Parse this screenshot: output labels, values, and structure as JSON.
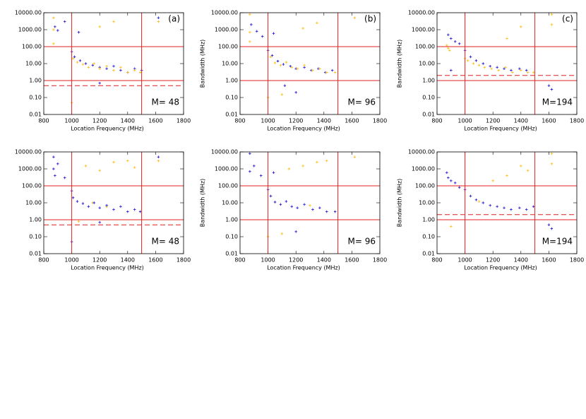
{
  "chart_data": [
    {
      "type": "scatter",
      "panel_label": "(a)",
      "annotation": "M= 48",
      "xlabel": "Location Frequency (MHz)",
      "ylabel": "Bandwidth (MHz)",
      "xlim": [
        800,
        1800
      ],
      "ylim": [
        0.01,
        10000
      ],
      "log_y": true,
      "xticks": [
        800,
        1000,
        1200,
        1400,
        1600,
        1800
      ],
      "yticks": [
        {
          "value": 10000,
          "label": "10000.00"
        },
        {
          "value": 1000,
          "label": "1000.00"
        },
        {
          "value": 100,
          "label": "100.00"
        },
        {
          "value": 10,
          "label": "10.00"
        },
        {
          "value": 1,
          "label": "1.00"
        },
        {
          "value": 0.1,
          "label": "0.10"
        },
        {
          "value": 0.01,
          "label": "0.01"
        }
      ],
      "vlines": [
        1000,
        1500
      ],
      "hlines": [
        1,
        100
      ],
      "dashed_hline": 0.5,
      "line_color": "#e02020",
      "series": [
        {
          "color": "#2a1fd6",
          "x": [
            880,
            900,
            950,
            1000,
            1020,
            1060,
            1100,
            1150,
            1200,
            1250,
            1300,
            1350,
            1400,
            1450,
            1500,
            1620,
            1050,
            1200
          ],
          "values": [
            1500,
            900,
            3000,
            50,
            25,
            15,
            10,
            8,
            6,
            5,
            7,
            4,
            3,
            5,
            4,
            5000,
            700,
            0.7
          ]
        },
        {
          "color": "#ffbf1a",
          "x": [
            870,
            870,
            870,
            1000,
            1010,
            1040,
            1080,
            1120,
            1160,
            1200,
            1250,
            1300,
            1350,
            1400,
            1450,
            1490,
            1200,
            1300,
            1620,
            1000
          ],
          "values": [
            5000,
            1000,
            150,
            0.05,
            20,
            12,
            9,
            6,
            10,
            5,
            7,
            4,
            6,
            3,
            4,
            3,
            1500,
            3000,
            3000,
            1
          ]
        }
      ]
    },
    {
      "type": "scatter",
      "panel_label": "(b)",
      "annotation": "M= 96",
      "xlabel": "Location Frequency (MHz)",
      "ylabel": "Bandwidth (MHz)",
      "xlim": [
        800,
        1800
      ],
      "ylim": [
        0.01,
        10000
      ],
      "log_y": true,
      "xticks": [
        800,
        1000,
        1200,
        1400,
        1600,
        1800
      ],
      "yticks": [
        {
          "value": 10000,
          "label": "10000.00"
        },
        {
          "value": 1000,
          "label": "1000.00"
        },
        {
          "value": 100,
          "label": "100.00"
        },
        {
          "value": 10,
          "label": "10.00"
        },
        {
          "value": 1,
          "label": "1.00"
        },
        {
          "value": 0.1,
          "label": "0.10"
        },
        {
          "value": 0.01,
          "label": "0.01"
        }
      ],
      "vlines": [
        1000,
        1500
      ],
      "hlines": [
        1,
        100
      ],
      "dashed_hline": 1,
      "line_color": "#e02020",
      "series": [
        {
          "color": "#2a1fd6",
          "x": [
            880,
            920,
            960,
            1000,
            1030,
            1070,
            1110,
            1160,
            1200,
            1260,
            1310,
            1360,
            1410,
            1460,
            1040,
            1200,
            1120
          ],
          "values": [
            2000,
            800,
            400,
            60,
            30,
            14,
            9,
            7,
            5,
            6,
            4,
            5,
            3,
            4,
            600,
            0.2,
            0.5
          ]
        },
        {
          "color": "#ffbf1a",
          "x": [
            870,
            870,
            870,
            1000,
            1020,
            1050,
            1090,
            1130,
            1170,
            1210,
            1260,
            1320,
            1370,
            1420,
            1480,
            1250,
            1350,
            1620,
            1000,
            1100
          ],
          "values": [
            8000,
            700,
            200,
            0.1,
            25,
            11,
            8,
            12,
            6,
            5,
            8,
            4,
            5,
            3,
            3,
            1200,
            2500,
            5000,
            1,
            0.15
          ]
        }
      ]
    },
    {
      "type": "scatter",
      "panel_label": "(c)",
      "annotation": "M=194",
      "xlabel": "Location Frequency (MHz)",
      "ylabel": "Bandwidth (MHz)",
      "xlim": [
        800,
        1800
      ],
      "ylim": [
        0.01,
        10000
      ],
      "log_y": true,
      "xticks": [
        800,
        1000,
        1200,
        1400,
        1600,
        1800
      ],
      "yticks": [
        {
          "value": 10000,
          "label": "10000.00"
        },
        {
          "value": 1000,
          "label": "1000.00"
        },
        {
          "value": 100,
          "label": "100.00"
        },
        {
          "value": 10,
          "label": "10.00"
        },
        {
          "value": 1,
          "label": "1.00"
        },
        {
          "value": 0.1,
          "label": "0.10"
        },
        {
          "value": 0.01,
          "label": "0.01"
        }
      ],
      "vlines": [
        1000,
        1500
      ],
      "hlines": [
        1,
        100
      ],
      "dashed_hline": 2,
      "line_color": "#e02020",
      "series": [
        {
          "color": "#2a1fd6",
          "x": [
            880,
            900,
            930,
            960,
            1000,
            1040,
            1080,
            1130,
            1180,
            1230,
            1280,
            1330,
            1390,
            1440,
            1600,
            1620,
            900
          ],
          "values": [
            500,
            300,
            200,
            150,
            60,
            25,
            15,
            10,
            7,
            6,
            5,
            4,
            5,
            4,
            0.5,
            0.3,
            4
          ]
        },
        {
          "color": "#ffbf1a",
          "x": [
            870,
            880,
            890,
            1000,
            1020,
            1060,
            1100,
            1140,
            1190,
            1240,
            1290,
            1340,
            1400,
            1450,
            1490,
            1300,
            1400,
            1620,
            1620
          ],
          "values": [
            120,
            80,
            60,
            20,
            15,
            10,
            8,
            6,
            5,
            4,
            6,
            3,
            4,
            3,
            3,
            300,
            1500,
            8000,
            2000
          ]
        }
      ]
    },
    {
      "type": "scatter",
      "annotation": "M= 48",
      "xlabel": "Location Frequency (MHz)",
      "ylabel": "Bandwidth (MHz)",
      "xlim": [
        800,
        1800
      ],
      "ylim": [
        0.01,
        10000
      ],
      "log_y": true,
      "xticks": [
        800,
        1000,
        1200,
        1400,
        1600,
        1800
      ],
      "yticks": [
        {
          "value": 10000,
          "label": "10000.00"
        },
        {
          "value": 1000,
          "label": "1000.00"
        },
        {
          "value": 100,
          "label": "100.00"
        },
        {
          "value": 10,
          "label": "10.00"
        },
        {
          "value": 1,
          "label": "1.00"
        },
        {
          "value": 0.1,
          "label": "0.10"
        },
        {
          "value": 0.01,
          "label": "0.01"
        }
      ],
      "vlines": [
        1000,
        1500
      ],
      "hlines": [
        1,
        100
      ],
      "dashed_hline": 0.5,
      "line_color": "#e02020",
      "series": [
        {
          "color": "#ffbf1a",
          "x": [
            1100,
            1200,
            1300,
            1400,
            1450,
            1620,
            1050,
            1150,
            1250
          ],
          "values": [
            1500,
            800,
            2500,
            3000,
            1200,
            3000,
            0.8,
            10,
            6
          ]
        },
        {
          "color": "#2a1fd6",
          "x": [
            870,
            870,
            880,
            900,
            950,
            1000,
            1010,
            1040,
            1080,
            1120,
            1160,
            1200,
            1250,
            1300,
            1350,
            1400,
            1450,
            1490,
            1000,
            1200,
            1620
          ],
          "values": [
            5000,
            1000,
            400,
            2000,
            300,
            50,
            20,
            12,
            9,
            6,
            10,
            5,
            7,
            4,
            6,
            3,
            4,
            3,
            0.05,
            0.7,
            5000
          ]
        }
      ]
    },
    {
      "type": "scatter",
      "annotation": "M= 96",
      "xlabel": "Location Frequency (MHz)",
      "ylabel": "Bandwidth (MHz)",
      "xlim": [
        800,
        1800
      ],
      "ylim": [
        0.01,
        10000
      ],
      "log_y": true,
      "xticks": [
        800,
        1000,
        1200,
        1400,
        1600,
        1800
      ],
      "yticks": [
        {
          "value": 10000,
          "label": "10000.00"
        },
        {
          "value": 1000,
          "label": "1000.00"
        },
        {
          "value": 100,
          "label": "100.00"
        },
        {
          "value": 10,
          "label": "10.00"
        },
        {
          "value": 1,
          "label": "1.00"
        },
        {
          "value": 0.1,
          "label": "0.10"
        },
        {
          "value": 0.01,
          "label": "0.01"
        }
      ],
      "vlines": [
        1000,
        1500
      ],
      "hlines": [
        1,
        100
      ],
      "dashed_hline": 1,
      "line_color": "#e02020",
      "series": [
        {
          "color": "#ffbf1a",
          "x": [
            1150,
            1250,
            1350,
            1420,
            1620,
            1000,
            1100,
            1300
          ],
          "values": [
            1000,
            1500,
            2500,
            3000,
            5000,
            0.1,
            0.15,
            7
          ]
        },
        {
          "color": "#2a1fd6",
          "x": [
            870,
            870,
            900,
            950,
            1000,
            1020,
            1050,
            1090,
            1130,
            1170,
            1210,
            1260,
            1320,
            1370,
            1420,
            1480,
            1200,
            1040
          ],
          "values": [
            8000,
            700,
            1500,
            400,
            60,
            25,
            11,
            8,
            12,
            6,
            5,
            8,
            4,
            5,
            3,
            3,
            0.2,
            600
          ]
        }
      ]
    },
    {
      "type": "scatter",
      "annotation": "M=194",
      "xlabel": "Location Frequency (MHz)",
      "ylabel": "Bandwidth (MHz)",
      "xlim": [
        800,
        1800
      ],
      "ylim": [
        0.01,
        10000
      ],
      "log_y": true,
      "xticks": [
        800,
        1000,
        1200,
        1400,
        1600,
        1800
      ],
      "yticks": [
        {
          "value": 10000,
          "label": "10000.00"
        },
        {
          "value": 1000,
          "label": "1000.00"
        },
        {
          "value": 100,
          "label": "100.00"
        },
        {
          "value": 10,
          "label": "10.00"
        },
        {
          "value": 1,
          "label": "1.00"
        },
        {
          "value": 0.1,
          "label": "0.10"
        },
        {
          "value": 0.01,
          "label": "0.01"
        }
      ],
      "vlines": [
        1000,
        1500
      ],
      "hlines": [
        1,
        100
      ],
      "dashed_hline": 2,
      "line_color": "#e02020",
      "series": [
        {
          "color": "#ffbf1a",
          "x": [
            1200,
            1300,
            1400,
            1450,
            1620,
            1620,
            1100,
            900
          ],
          "values": [
            200,
            400,
            1500,
            800,
            8000,
            2000,
            12,
            0.4
          ]
        },
        {
          "color": "#2a1fd6",
          "x": [
            870,
            880,
            900,
            930,
            960,
            1000,
            1040,
            1080,
            1130,
            1180,
            1230,
            1280,
            1330,
            1390,
            1440,
            1490,
            1600,
            1620
          ],
          "values": [
            600,
            300,
            200,
            150,
            80,
            60,
            25,
            15,
            10,
            7,
            6,
            5,
            4,
            5,
            4,
            6,
            0.5,
            0.3
          ]
        }
      ]
    }
  ]
}
